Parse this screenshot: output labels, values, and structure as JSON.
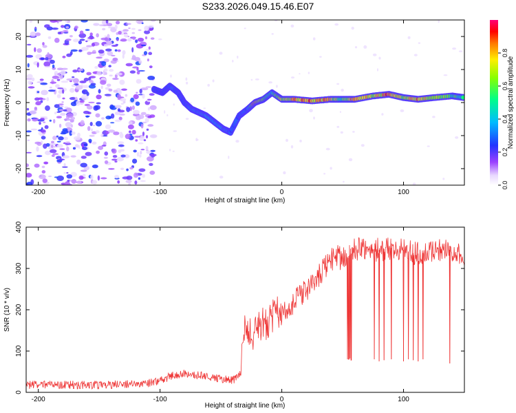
{
  "title": "S233.2026.049.15.46.E07",
  "chart_data": [
    {
      "type": "heatmap",
      "xlabel": "Height of straight line (km)",
      "ylabel": "Frequency (Hz)",
      "xlim": [
        -210,
        150
      ],
      "ylim": [
        -25,
        25
      ],
      "xticks": [
        -200,
        -100,
        0,
        100
      ],
      "yticks": [
        -20,
        -10,
        0,
        10,
        20
      ],
      "colorbar": {
        "label": "Normalized spectral amplitude",
        "range": [
          0,
          1
        ],
        "ticks": [
          "0.0",
          "0.2",
          "0.4",
          "0.6",
          "0.8"
        ],
        "tick_values": [
          0,
          0.2,
          0.4,
          0.6,
          0.8
        ]
      },
      "noise_region_km": [
        -210,
        -105
      ],
      "ridge": [
        {
          "x": -105,
          "y": 4,
          "a": 0.3
        },
        {
          "x": -98,
          "y": 3,
          "a": 0.25
        },
        {
          "x": -92,
          "y": 5,
          "a": 0.35
        },
        {
          "x": -85,
          "y": 3,
          "a": 0.3
        },
        {
          "x": -80,
          "y": 0,
          "a": 0.3
        },
        {
          "x": -74,
          "y": -2,
          "a": 0.35
        },
        {
          "x": -68,
          "y": -3,
          "a": 0.4
        },
        {
          "x": -62,
          "y": -4,
          "a": 0.45
        },
        {
          "x": -55,
          "y": -6,
          "a": 0.4
        },
        {
          "x": -48,
          "y": -8,
          "a": 0.4
        },
        {
          "x": -42,
          "y": -9,
          "a": 0.3
        },
        {
          "x": -35,
          "y": -4,
          "a": 0.3
        },
        {
          "x": -28,
          "y": -2,
          "a": 0.3
        },
        {
          "x": -22,
          "y": 0,
          "a": 0.9
        },
        {
          "x": -15,
          "y": 1,
          "a": 0.6
        },
        {
          "x": -8,
          "y": 3,
          "a": 0.5
        },
        {
          "x": 0,
          "y": 1,
          "a": 0.7
        },
        {
          "x": 10,
          "y": 1,
          "a": 0.8
        },
        {
          "x": 25,
          "y": 0.5,
          "a": 0.9
        },
        {
          "x": 40,
          "y": 1,
          "a": 0.8
        },
        {
          "x": 50,
          "y": 1,
          "a": 0.6
        },
        {
          "x": 60,
          "y": 1,
          "a": 0.85
        },
        {
          "x": 75,
          "y": 2,
          "a": 0.7
        },
        {
          "x": 88,
          "y": 2.5,
          "a": 0.9
        },
        {
          "x": 100,
          "y": 1.5,
          "a": 0.7
        },
        {
          "x": 112,
          "y": 1,
          "a": 0.8
        },
        {
          "x": 125,
          "y": 1.5,
          "a": 0.7
        },
        {
          "x": 140,
          "y": 2,
          "a": 0.6
        },
        {
          "x": 150,
          "y": 1.5,
          "a": 0.5
        }
      ]
    },
    {
      "type": "line",
      "xlabel": "Height of straight line (km)",
      "ylabel": "SNR (10 * v/v)",
      "xlim": [
        -210,
        150
      ],
      "ylim": [
        0,
        400
      ],
      "xticks": [
        -200,
        -100,
        0,
        100
      ],
      "yticks": [
        0,
        100,
        200,
        300,
        400
      ],
      "color": "#ee3333",
      "series": [
        {
          "name": "SNR",
          "x": [
            -210,
            -180,
            -150,
            -120,
            -105,
            -90,
            -80,
            -70,
            -60,
            -50,
            -40,
            -35,
            -30,
            -25,
            -20,
            -15,
            -10,
            -5,
            0,
            10,
            20,
            25,
            30,
            35,
            40,
            45,
            50,
            55,
            60,
            70,
            80,
            90,
            100,
            110,
            120,
            130,
            140,
            150
          ],
          "y": [
            18,
            18,
            18,
            20,
            24,
            40,
            45,
            42,
            38,
            32,
            30,
            40,
            170,
            130,
            150,
            165,
            175,
            185,
            200,
            220,
            245,
            265,
            280,
            300,
            320,
            330,
            320,
            330,
            345,
            350,
            345,
            350,
            345,
            335,
            340,
            345,
            345,
            330
          ]
        }
      ],
      "dropouts": [
        {
          "x": 54,
          "y": 80
        },
        {
          "x": 55,
          "y": 80
        },
        {
          "x": 56,
          "y": 82
        },
        {
          "x": 57,
          "y": 78
        },
        {
          "x": 76,
          "y": 80
        },
        {
          "x": 80,
          "y": 75
        },
        {
          "x": 84,
          "y": 78
        },
        {
          "x": 90,
          "y": 80
        },
        {
          "x": 100,
          "y": 75
        },
        {
          "x": 104,
          "y": 80
        },
        {
          "x": 108,
          "y": 78
        },
        {
          "x": 112,
          "y": 75
        },
        {
          "x": 116,
          "y": 80
        },
        {
          "x": 138,
          "y": 70
        }
      ]
    }
  ]
}
